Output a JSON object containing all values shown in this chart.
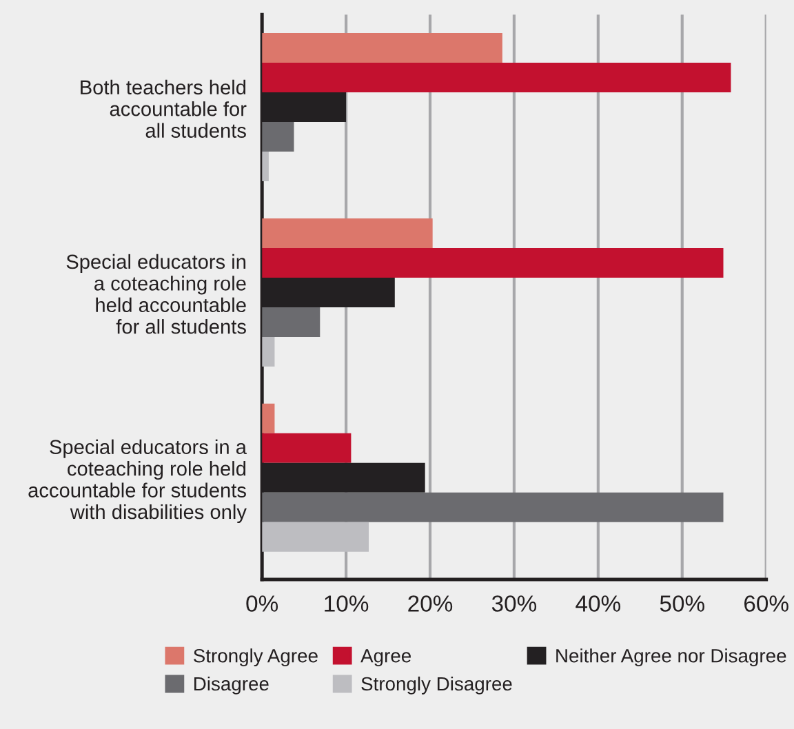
{
  "chart_data": {
    "type": "bar",
    "orientation": "horizontal",
    "categories": [
      "Both teachers held\naccountable for\nall students",
      "Special educators in\na coteaching role\nheld accountable\nfor all students",
      "Special educators in a\ncoteaching role held\naccountable for students\nwith disabilities only"
    ],
    "series": [
      {
        "name": "Strongly Agree",
        "color": "#dc776b",
        "values": [
          28.6,
          20.3,
          1.5
        ]
      },
      {
        "name": "Agree",
        "color": "#c3112f",
        "values": [
          55.8,
          54.9,
          10.6
        ]
      },
      {
        "name": "Neither Agree nor Disagree",
        "color": "#232022",
        "values": [
          10.0,
          15.8,
          19.4
        ]
      },
      {
        "name": "Disagree",
        "color": "#6b6b6f",
        "values": [
          3.8,
          6.9,
          54.9
        ]
      },
      {
        "name": "Strongly Disagree",
        "color": "#bdbdc1",
        "values": [
          0.8,
          1.5,
          12.7
        ]
      }
    ],
    "xlim": [
      0,
      60
    ],
    "xticks": [
      {
        "value": 0,
        "label": "0%"
      },
      {
        "value": 10,
        "label": "10%"
      },
      {
        "value": 20,
        "label": "20%"
      },
      {
        "value": 30,
        "label": "30%"
      },
      {
        "value": 40,
        "label": "40%"
      },
      {
        "value": 50,
        "label": "50%"
      },
      {
        "value": 60,
        "label": "60%"
      }
    ],
    "grid": "x",
    "legend": "bottom"
  }
}
